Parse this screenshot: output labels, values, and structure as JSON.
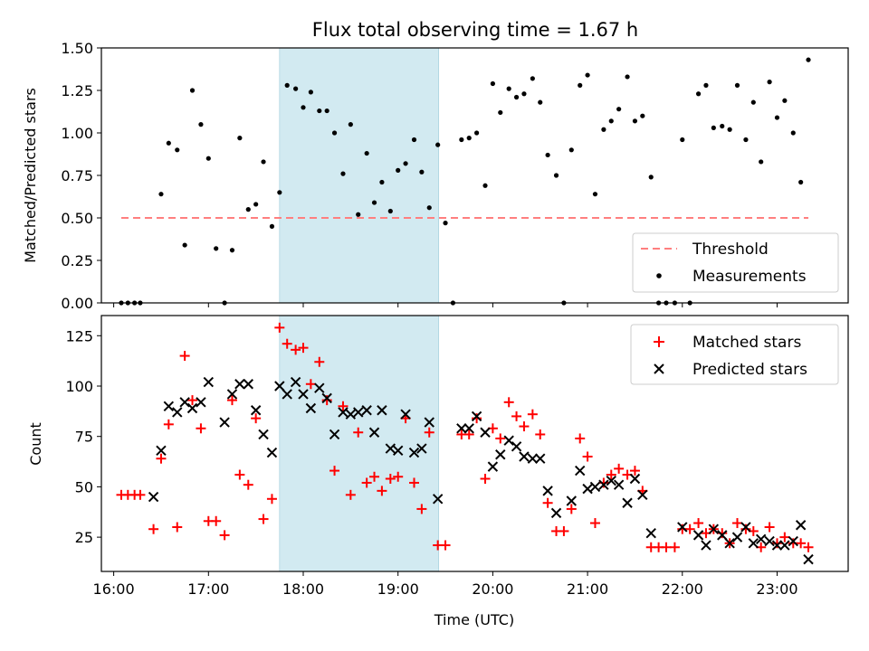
{
  "chart_data": [
    {
      "type": "scatter",
      "title": "Flux total observing time = 1.67 h",
      "ylabel": "Matched/Predicted stars",
      "xlabel": "",
      "ylim": [
        0,
        1.5
      ],
      "yticks": [
        0,
        0.25,
        0.5,
        0.75,
        1.0,
        1.25,
        1.5
      ],
      "ytick_labels": [
        "0.00",
        "0.25",
        "0.50",
        "0.75",
        "1.00",
        "1.25",
        "1.50"
      ],
      "xlim_hours": [
        15.87,
        23.75
      ],
      "xticks_hours": [
        16,
        17,
        18,
        19,
        20,
        21,
        22,
        23
      ],
      "shaded_region_hours": [
        17.75,
        19.43
      ],
      "legend_position": "lower-right",
      "threshold": {
        "name": "Threshold",
        "y": 0.5,
        "x_range_hours": [
          16.08,
          23.33
        ],
        "color": "#ff7f7f",
        "style": "dashed"
      },
      "series": [
        {
          "name": "Measurements",
          "color": "#000000",
          "points": [
            [
              16.08,
              0.0
            ],
            [
              16.15,
              0.0
            ],
            [
              16.22,
              0.0
            ],
            [
              16.28,
              0.0
            ],
            [
              16.5,
              0.64
            ],
            [
              16.58,
              0.94
            ],
            [
              16.67,
              0.9
            ],
            [
              16.75,
              0.34
            ],
            [
              16.83,
              1.25
            ],
            [
              16.92,
              1.05
            ],
            [
              17.0,
              0.85
            ],
            [
              17.08,
              0.32
            ],
            [
              17.17,
              0.0
            ],
            [
              17.25,
              0.31
            ],
            [
              17.33,
              0.97
            ],
            [
              17.42,
              0.55
            ],
            [
              17.5,
              0.58
            ],
            [
              17.58,
              0.83
            ],
            [
              17.67,
              0.45
            ],
            [
              17.75,
              0.65
            ],
            [
              17.83,
              1.28
            ],
            [
              17.92,
              1.26
            ],
            [
              18.0,
              1.15
            ],
            [
              18.08,
              1.24
            ],
            [
              18.17,
              1.13
            ],
            [
              18.25,
              1.13
            ],
            [
              18.33,
              1.0
            ],
            [
              18.42,
              0.76
            ],
            [
              18.5,
              1.05
            ],
            [
              18.58,
              0.52
            ],
            [
              18.67,
              0.88
            ],
            [
              18.75,
              0.59
            ],
            [
              18.83,
              0.71
            ],
            [
              18.92,
              0.54
            ],
            [
              19.0,
              0.78
            ],
            [
              19.08,
              0.82
            ],
            [
              19.17,
              0.96
            ],
            [
              19.25,
              0.77
            ],
            [
              19.33,
              0.56
            ],
            [
              19.42,
              0.93
            ],
            [
              19.5,
              0.47
            ],
            [
              19.58,
              0.0
            ],
            [
              19.67,
              0.96
            ],
            [
              19.75,
              0.97
            ],
            [
              19.83,
              1.0
            ],
            [
              19.92,
              0.69
            ],
            [
              20.0,
              1.29
            ],
            [
              20.08,
              1.12
            ],
            [
              20.17,
              1.26
            ],
            [
              20.25,
              1.21
            ],
            [
              20.33,
              1.23
            ],
            [
              20.42,
              1.32
            ],
            [
              20.5,
              1.18
            ],
            [
              20.58,
              0.87
            ],
            [
              20.67,
              0.75
            ],
            [
              20.75,
              0.0
            ],
            [
              20.83,
              0.9
            ],
            [
              20.92,
              1.28
            ],
            [
              21.0,
              1.34
            ],
            [
              21.08,
              0.64
            ],
            [
              21.17,
              1.02
            ],
            [
              21.25,
              1.07
            ],
            [
              21.33,
              1.14
            ],
            [
              21.42,
              1.33
            ],
            [
              21.5,
              1.07
            ],
            [
              21.58,
              1.1
            ],
            [
              21.67,
              0.74
            ],
            [
              21.75,
              0.0
            ],
            [
              21.83,
              0.0
            ],
            [
              21.92,
              0.0
            ],
            [
              22.0,
              0.96
            ],
            [
              22.08,
              0.0
            ],
            [
              22.17,
              1.23
            ],
            [
              22.25,
              1.28
            ],
            [
              22.33,
              1.03
            ],
            [
              22.42,
              1.04
            ],
            [
              22.5,
              1.02
            ],
            [
              22.58,
              1.28
            ],
            [
              22.67,
              0.96
            ],
            [
              22.75,
              1.18
            ],
            [
              22.83,
              0.83
            ],
            [
              22.92,
              1.3
            ],
            [
              23.0,
              1.09
            ],
            [
              23.08,
              1.19
            ],
            [
              23.17,
              1.0
            ],
            [
              23.25,
              0.71
            ],
            [
              23.33,
              1.43
            ]
          ]
        }
      ]
    },
    {
      "type": "scatter",
      "title": "",
      "ylabel": "Count",
      "xlabel": "Time (UTC)",
      "ylim": [
        8,
        135
      ],
      "yticks": [
        25,
        50,
        75,
        100,
        125
      ],
      "ytick_labels": [
        "25",
        "50",
        "75",
        "100",
        "125"
      ],
      "xlim_hours": [
        15.87,
        23.75
      ],
      "xticks_hours": [
        16,
        17,
        18,
        19,
        20,
        21,
        22,
        23
      ],
      "xtick_labels": [
        "16:00",
        "17:00",
        "18:00",
        "19:00",
        "20:00",
        "21:00",
        "22:00",
        "23:00"
      ],
      "shaded_region_hours": [
        17.75,
        19.43
      ],
      "legend_position": "upper-right",
      "series": [
        {
          "name": "Matched stars",
          "color": "#ff0000",
          "marker": "plus",
          "points": [
            [
              16.08,
              46
            ],
            [
              16.15,
              46
            ],
            [
              16.22,
              46
            ],
            [
              16.28,
              46
            ],
            [
              16.42,
              29
            ],
            [
              16.5,
              64
            ],
            [
              16.58,
              81
            ],
            [
              16.67,
              30
            ],
            [
              16.75,
              115
            ],
            [
              16.83,
              93
            ],
            [
              16.92,
              79
            ],
            [
              17.0,
              33
            ],
            [
              17.08,
              33
            ],
            [
              17.17,
              26
            ],
            [
              17.25,
              93
            ],
            [
              17.33,
              56
            ],
            [
              17.42,
              51
            ],
            [
              17.5,
              84
            ],
            [
              17.58,
              34
            ],
            [
              17.67,
              44
            ],
            [
              17.75,
              129
            ],
            [
              17.83,
              121
            ],
            [
              17.92,
              118
            ],
            [
              18.0,
              119
            ],
            [
              18.08,
              101
            ],
            [
              18.17,
              112
            ],
            [
              18.25,
              93
            ],
            [
              18.33,
              58
            ],
            [
              18.42,
              90
            ],
            [
              18.5,
              46
            ],
            [
              18.58,
              77
            ],
            [
              18.67,
              52
            ],
            [
              18.75,
              55
            ],
            [
              18.83,
              48
            ],
            [
              18.92,
              54
            ],
            [
              19.0,
              55
            ],
            [
              19.08,
              84
            ],
            [
              19.17,
              52
            ],
            [
              19.25,
              39
            ],
            [
              19.33,
              77
            ],
            [
              19.42,
              21
            ],
            [
              19.5,
              21
            ],
            [
              19.67,
              76
            ],
            [
              19.75,
              76
            ],
            [
              19.83,
              84
            ],
            [
              19.92,
              54
            ],
            [
              20.0,
              79
            ],
            [
              20.08,
              74
            ],
            [
              20.17,
              92
            ],
            [
              20.25,
              85
            ],
            [
              20.33,
              80
            ],
            [
              20.42,
              86
            ],
            [
              20.5,
              76
            ],
            [
              20.58,
              42
            ],
            [
              20.67,
              28
            ],
            [
              20.75,
              28
            ],
            [
              20.83,
              39
            ],
            [
              20.92,
              74
            ],
            [
              21.0,
              65
            ],
            [
              21.08,
              32
            ],
            [
              21.17,
              52
            ],
            [
              21.25,
              56
            ],
            [
              21.33,
              59
            ],
            [
              21.42,
              56
            ],
            [
              21.5,
              58
            ],
            [
              21.58,
              48
            ],
            [
              21.67,
              20
            ],
            [
              21.75,
              20
            ],
            [
              21.83,
              20
            ],
            [
              21.92,
              20
            ],
            [
              22.0,
              29
            ],
            [
              22.08,
              29
            ],
            [
              22.17,
              32
            ],
            [
              22.25,
              27
            ],
            [
              22.33,
              29
            ],
            [
              22.42,
              27
            ],
            [
              22.5,
              22
            ],
            [
              22.58,
              32
            ],
            [
              22.67,
              29
            ],
            [
              22.75,
              28
            ],
            [
              22.83,
              20
            ],
            [
              22.92,
              30
            ],
            [
              23.0,
              22
            ],
            [
              23.08,
              25
            ],
            [
              23.17,
              22
            ],
            [
              23.25,
              22
            ],
            [
              23.33,
              20
            ]
          ]
        },
        {
          "name": "Predicted stars",
          "color": "#000000",
          "marker": "x",
          "points": [
            [
              16.42,
              45
            ],
            [
              16.5,
              68
            ],
            [
              16.58,
              90
            ],
            [
              16.67,
              87
            ],
            [
              16.75,
              92
            ],
            [
              16.83,
              89
            ],
            [
              16.92,
              92
            ],
            [
              17.0,
              102
            ],
            [
              17.17,
              82
            ],
            [
              17.25,
              96
            ],
            [
              17.33,
              101
            ],
            [
              17.42,
              101
            ],
            [
              17.5,
              88
            ],
            [
              17.58,
              76
            ],
            [
              17.67,
              67
            ],
            [
              17.75,
              100
            ],
            [
              17.83,
              96
            ],
            [
              17.92,
              102
            ],
            [
              18.0,
              96
            ],
            [
              18.08,
              89
            ],
            [
              18.17,
              99
            ],
            [
              18.25,
              94
            ],
            [
              18.33,
              76
            ],
            [
              18.42,
              87
            ],
            [
              18.5,
              86
            ],
            [
              18.58,
              87
            ],
            [
              18.67,
              88
            ],
            [
              18.75,
              77
            ],
            [
              18.83,
              88
            ],
            [
              18.92,
              69
            ],
            [
              19.0,
              68
            ],
            [
              19.08,
              86
            ],
            [
              19.17,
              67
            ],
            [
              19.25,
              69
            ],
            [
              19.33,
              82
            ],
            [
              19.42,
              44
            ],
            [
              19.67,
              79
            ],
            [
              19.75,
              79
            ],
            [
              19.83,
              85
            ],
            [
              19.92,
              77
            ],
            [
              20.0,
              60
            ],
            [
              20.08,
              66
            ],
            [
              20.17,
              73
            ],
            [
              20.25,
              70
            ],
            [
              20.33,
              65
            ],
            [
              20.42,
              64
            ],
            [
              20.5,
              64
            ],
            [
              20.58,
              48
            ],
            [
              20.67,
              37
            ],
            [
              20.83,
              43
            ],
            [
              20.92,
              58
            ],
            [
              21.0,
              49
            ],
            [
              21.08,
              50
            ],
            [
              21.17,
              51
            ],
            [
              21.25,
              53
            ],
            [
              21.33,
              51
            ],
            [
              21.42,
              42
            ],
            [
              21.5,
              54
            ],
            [
              21.58,
              46
            ],
            [
              21.67,
              27
            ],
            [
              22.0,
              30
            ],
            [
              22.17,
              26
            ],
            [
              22.25,
              21
            ],
            [
              22.33,
              29
            ],
            [
              22.42,
              26
            ],
            [
              22.5,
              22
            ],
            [
              22.58,
              25
            ],
            [
              22.67,
              30
            ],
            [
              22.75,
              22
            ],
            [
              22.83,
              24
            ],
            [
              22.92,
              23
            ],
            [
              23.0,
              21
            ],
            [
              23.08,
              21
            ],
            [
              23.17,
              23
            ],
            [
              23.25,
              31
            ],
            [
              23.33,
              14
            ]
          ]
        }
      ]
    }
  ]
}
